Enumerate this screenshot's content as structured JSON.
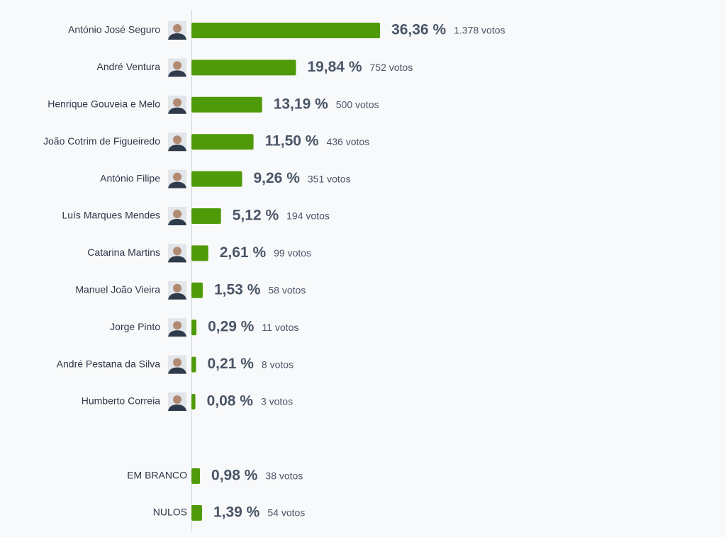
{
  "chart_data": {
    "type": "bar",
    "orientation": "horizontal",
    "color": "#4f9a08",
    "categories": [
      "António José Seguro",
      "André Ventura",
      "Henrique Gouveia e Melo",
      "João Cotrim de Figueiredo",
      "António Filipe",
      "Luís Marques Mendes",
      "Catarina Martins",
      "Manuel João Vieira",
      "Jorge Pinto",
      "André Pestana da Silva",
      "Humberto Correia",
      "EM BRANCO",
      "NULOS"
    ],
    "values": [
      36.36,
      19.84,
      13.19,
      11.5,
      9.26,
      5.12,
      2.61,
      1.53,
      0.29,
      0.21,
      0.08,
      0.98,
      1.39
    ],
    "value_labels": [
      "36,36 %",
      "19,84 %",
      "13,19 %",
      "11,50 %",
      "9,26 %",
      "5,12 %",
      "2,61 %",
      "1,53 %",
      "0,29 %",
      "0,21 %",
      "0,08 %",
      "0,98 %",
      "1,39 %"
    ],
    "votes": [
      1378,
      752,
      500,
      436,
      351,
      194,
      99,
      58,
      11,
      8,
      3,
      38,
      54
    ],
    "votes_labels": [
      "1.378 votos",
      "752 votos",
      "500 votos",
      "436 votos",
      "351 votos",
      "194 votos",
      "99 votos",
      "58 votos",
      "11 votos",
      "8 votos",
      "3 votos",
      "38 votos",
      "54 votos"
    ]
  }
}
